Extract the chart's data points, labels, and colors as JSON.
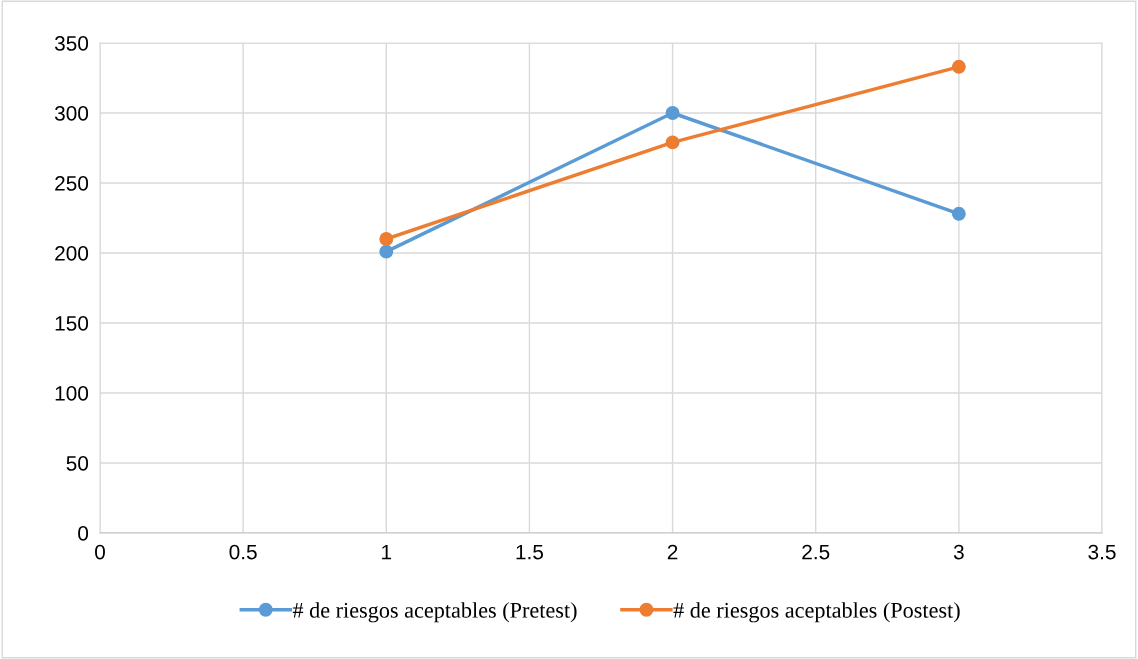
{
  "chart_data": {
    "type": "line",
    "series": [
      {
        "name": "# de riesgos aceptables (Pretest)",
        "color": "#5b9bd5",
        "x": [
          1,
          2,
          3
        ],
        "values": [
          201,
          300,
          228
        ]
      },
      {
        "name": "# de riesgos aceptables (Postest)",
        "color": "#ed7d31",
        "x": [
          1,
          2,
          3
        ],
        "values": [
          210,
          279,
          333
        ]
      }
    ],
    "xlim": [
      0,
      3.5
    ],
    "xticks": [
      0,
      0.5,
      1,
      1.5,
      2,
      2.5,
      3,
      3.5
    ],
    "ylim": [
      0,
      350
    ],
    "yticks": [
      0,
      50,
      100,
      150,
      200,
      250,
      300,
      350
    ],
    "grid": true,
    "legend": "bottom",
    "marker": "circle",
    "line_style": "solid"
  }
}
